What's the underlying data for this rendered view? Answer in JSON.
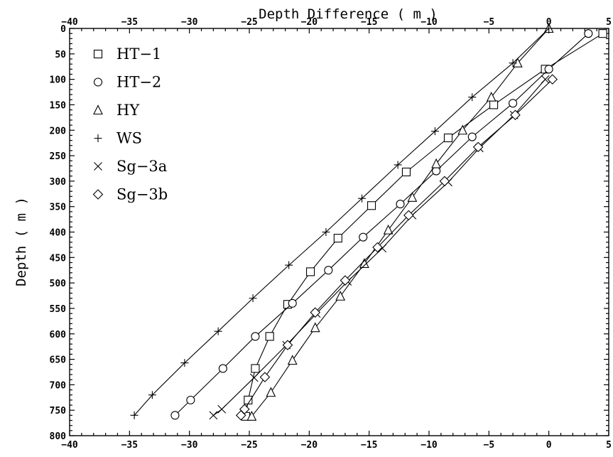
{
  "chart_data": {
    "type": "line",
    "xlabel": "Depth Difference ( m )",
    "ylabel": "Depth ( m )",
    "xlim": [
      -40,
      5
    ],
    "ylim": [
      0,
      800
    ],
    "y_inverted": true,
    "x_ticks": [
      -40,
      -35,
      -30,
      -25,
      -20,
      -15,
      -10,
      -5,
      0,
      5
    ],
    "x_tick_labels": [
      "−40",
      "−35",
      "−30",
      "−25",
      "−20",
      "−15",
      "−10",
      "−5",
      "0",
      "5"
    ],
    "y_ticks": [
      0,
      50,
      100,
      150,
      200,
      250,
      300,
      350,
      400,
      450,
      500,
      550,
      600,
      650,
      700,
      750,
      800
    ],
    "y_tick_labels": [
      "0",
      "50",
      "100",
      "150",
      "200",
      "250",
      "300",
      "350",
      "400",
      "450",
      "500",
      "550",
      "600",
      "650",
      "700",
      "750",
      "800"
    ],
    "x_axis_labels_on": [
      "top",
      "bottom"
    ],
    "legend_position": "top-left",
    "grid": false,
    "series": [
      {
        "name": "HT−1",
        "marker": "square",
        "points": [
          {
            "x": 4.5,
            "y": 10
          },
          {
            "x": -0.3,
            "y": 80
          },
          {
            "x": -4.6,
            "y": 150
          },
          {
            "x": -8.4,
            "y": 215
          },
          {
            "x": -11.9,
            "y": 282
          },
          {
            "x": -14.8,
            "y": 348
          },
          {
            "x": -17.6,
            "y": 412
          },
          {
            "x": -19.9,
            "y": 478
          },
          {
            "x": -21.8,
            "y": 542
          },
          {
            "x": -23.3,
            "y": 605
          },
          {
            "x": -24.5,
            "y": 668
          },
          {
            "x": -25.1,
            "y": 730
          },
          {
            "x": -25.3,
            "y": 762
          }
        ]
      },
      {
        "name": "HT−2",
        "marker": "circle",
        "points": [
          {
            "x": 3.3,
            "y": 10
          },
          {
            "x": 0.0,
            "y": 80
          },
          {
            "x": -3.0,
            "y": 147
          },
          {
            "x": -6.4,
            "y": 213
          },
          {
            "x": -9.4,
            "y": 280
          },
          {
            "x": -12.4,
            "y": 345
          },
          {
            "x": -15.5,
            "y": 410
          },
          {
            "x": -18.4,
            "y": 475
          },
          {
            "x": -21.4,
            "y": 540
          },
          {
            "x": -24.5,
            "y": 605
          },
          {
            "x": -27.2,
            "y": 668
          },
          {
            "x": -29.9,
            "y": 730
          },
          {
            "x": -31.2,
            "y": 760
          }
        ]
      },
      {
        "name": "HY",
        "marker": "triangle",
        "points": [
          {
            "x": 0.0,
            "y": 0
          },
          {
            "x": -2.6,
            "y": 68
          },
          {
            "x": -4.8,
            "y": 135
          },
          {
            "x": -7.2,
            "y": 200
          },
          {
            "x": -9.4,
            "y": 266
          },
          {
            "x": -11.4,
            "y": 332
          },
          {
            "x": -13.4,
            "y": 396
          },
          {
            "x": -15.4,
            "y": 462
          },
          {
            "x": -17.4,
            "y": 526
          },
          {
            "x": -19.5,
            "y": 588
          },
          {
            "x": -21.4,
            "y": 652
          },
          {
            "x": -23.2,
            "y": 715
          },
          {
            "x": -24.8,
            "y": 762
          }
        ]
      },
      {
        "name": "WS",
        "marker": "plus",
        "points": [
          {
            "x": 0.0,
            "y": 0
          },
          {
            "x": -3.0,
            "y": 68
          },
          {
            "x": -6.4,
            "y": 135
          },
          {
            "x": -9.5,
            "y": 202
          },
          {
            "x": -12.6,
            "y": 268
          },
          {
            "x": -15.6,
            "y": 334
          },
          {
            "x": -18.6,
            "y": 400
          },
          {
            "x": -21.7,
            "y": 465
          },
          {
            "x": -24.7,
            "y": 530
          },
          {
            "x": -27.6,
            "y": 595
          },
          {
            "x": -30.4,
            "y": 657
          },
          {
            "x": -33.1,
            "y": 720
          },
          {
            "x": -34.6,
            "y": 760
          }
        ]
      },
      {
        "name": "Sg−3a",
        "marker": "x",
        "points": [
          {
            "x": -0.3,
            "y": 100
          },
          {
            "x": -2.9,
            "y": 170
          },
          {
            "x": -5.8,
            "y": 235
          },
          {
            "x": -8.4,
            "y": 302
          },
          {
            "x": -11.4,
            "y": 367
          },
          {
            "x": -13.9,
            "y": 432
          },
          {
            "x": -16.8,
            "y": 497
          },
          {
            "x": -19.4,
            "y": 560
          },
          {
            "x": -21.9,
            "y": 622
          },
          {
            "x": -24.6,
            "y": 686
          },
          {
            "x": -27.3,
            "y": 748
          },
          {
            "x": -28.0,
            "y": 760
          }
        ]
      },
      {
        "name": "Sg−3b",
        "marker": "diamond",
        "points": [
          {
            "x": 0.3,
            "y": 100
          },
          {
            "x": -2.8,
            "y": 170
          },
          {
            "x": -5.9,
            "y": 233
          },
          {
            "x": -8.7,
            "y": 300
          },
          {
            "x": -11.7,
            "y": 367
          },
          {
            "x": -14.3,
            "y": 430
          },
          {
            "x": -17.0,
            "y": 495
          },
          {
            "x": -19.5,
            "y": 558
          },
          {
            "x": -21.8,
            "y": 622
          },
          {
            "x": -23.7,
            "y": 685
          },
          {
            "x": -25.4,
            "y": 748
          },
          {
            "x": -25.7,
            "y": 760
          }
        ]
      }
    ]
  }
}
